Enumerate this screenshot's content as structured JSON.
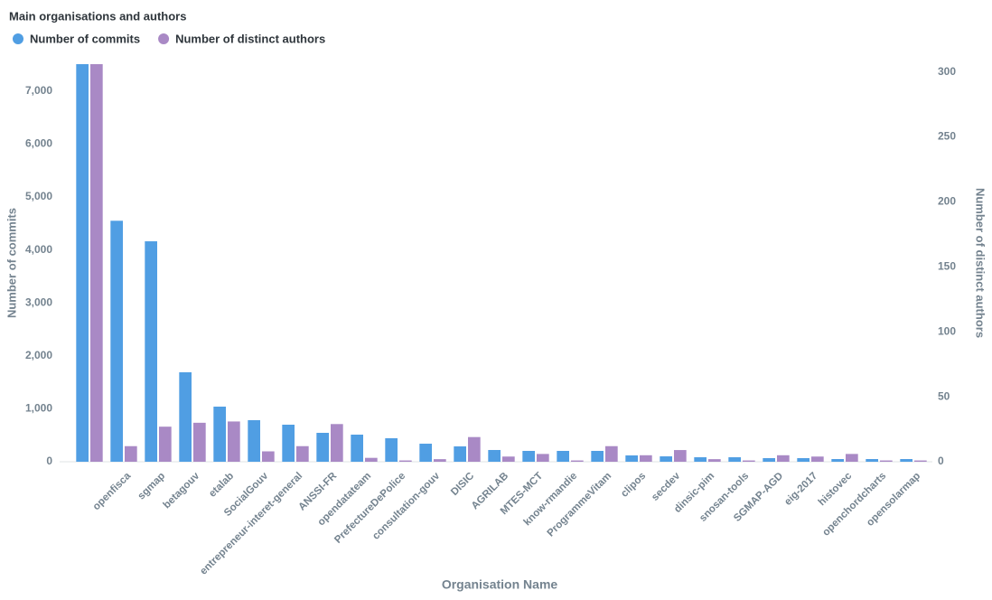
{
  "chart_data": {
    "type": "bar",
    "title": "Main organisations and authors",
    "x_label": "Organisation Name",
    "y_label": "Number of commits",
    "y2_label": "Number of distinct authors",
    "categories": [
      null,
      "openfisca",
      "sgmap",
      "betagouv",
      "etalab",
      "SocialGouv",
      "entrepreneur-interet-general",
      "ANSSI-FR",
      "opendatateam",
      "PrefectureDePolice",
      "consultation-gouv",
      "DISIC",
      "AGRILAB",
      "MTES-MCT",
      "know-rmandie",
      "ProgrammeVitam",
      "clipos",
      "secdev",
      "dinsic-pim",
      "snosan-tools",
      "SGMAP-AGD",
      "eig-2017",
      "histovec",
      "openchordcharts",
      "opensolarmap"
    ],
    "series": [
      {
        "name": "Number of commits",
        "color": "#509ee3",
        "axis": "y",
        "values": [
          7510,
          4552,
          4164,
          1690,
          1041,
          785,
          700,
          546,
          512,
          444,
          341,
          290,
          222,
          205,
          205,
          205,
          120,
          102,
          85,
          85,
          68,
          68,
          51,
          51,
          51
        ]
      },
      {
        "name": "Number of distinct authors",
        "color": "#a989c5",
        "axis": "y2",
        "values": [
          306,
          12,
          27,
          30,
          31,
          8,
          12,
          29,
          3,
          1,
          2,
          19,
          4,
          6,
          1,
          12,
          5,
          9,
          2,
          1,
          5,
          4,
          6,
          1,
          1
        ]
      }
    ],
    "ylim": [
      0,
      7510
    ],
    "yticks": [
      0,
      {
        "value": 1000,
        "label": "1,000"
      },
      {
        "value": 2000,
        "label": "2,000"
      },
      {
        "value": 3000,
        "label": "3,000"
      },
      {
        "value": 4000,
        "label": "4,000"
      },
      {
        "value": 5000,
        "label": "5,000"
      },
      {
        "value": 6000,
        "label": "6,000"
      },
      {
        "value": 7000,
        "label": "7,000"
      }
    ],
    "y2lim": [
      0,
      306
    ],
    "y2ticks": [
      0,
      50,
      100,
      150,
      200,
      250,
      300
    ],
    "grid": false,
    "legend": "top-left"
  }
}
